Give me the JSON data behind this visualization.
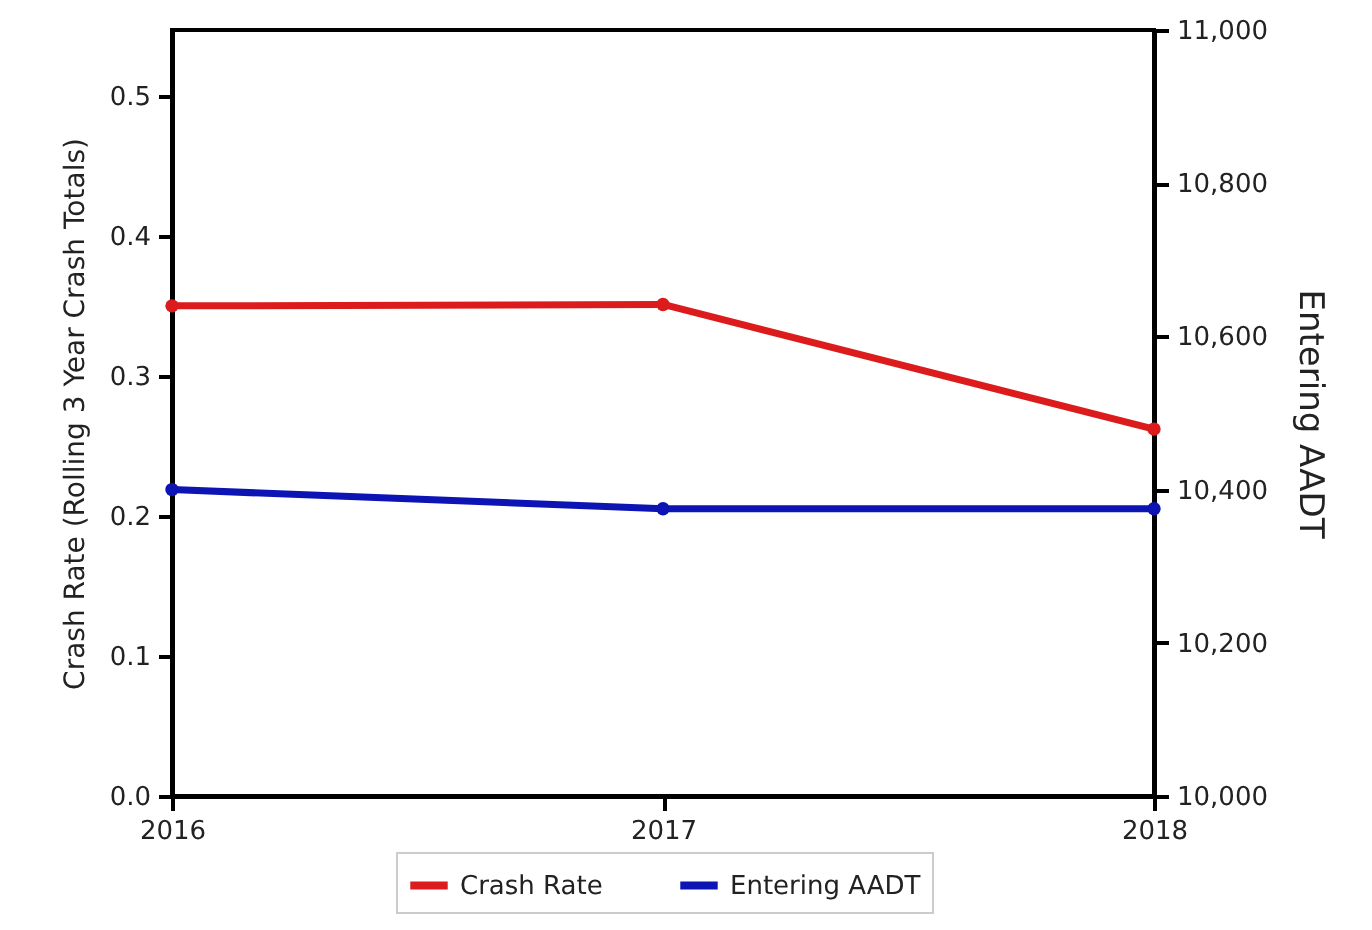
{
  "chart_data": {
    "type": "line",
    "xlabel": null,
    "ylabel": "Crash Rate (Rolling 3 Year Crash Totals)",
    "y2label": "Entering AADT",
    "x": [
      2016,
      2017,
      2018
    ],
    "xlim": [
      2016,
      2018
    ],
    "xticks": [
      2016,
      2017,
      2018
    ],
    "ylim": [
      0,
      0.547
    ],
    "yticks": [
      {
        "value": 0,
        "label": "0.0"
      },
      {
        "value": 0.1,
        "label": "0.1"
      },
      {
        "value": 0.2,
        "label": "0.2"
      },
      {
        "value": 0.3,
        "label": "0.3"
      },
      {
        "value": 0.4,
        "label": "0.4"
      },
      {
        "value": 0.5,
        "label": "0.5"
      }
    ],
    "y2lim": [
      10000,
      11000
    ],
    "y2ticks": [
      {
        "value": 10000,
        "label": "10,000"
      },
      {
        "value": 10200,
        "label": "10,200"
      },
      {
        "value": 10400,
        "label": "10,400"
      },
      {
        "value": 10600,
        "label": "10,600"
      },
      {
        "value": 10800,
        "label": "10,800"
      },
      {
        "value": 11000,
        "label": "11,000"
      }
    ],
    "series": [
      {
        "name": "Crash Rate",
        "color": "#dc1c1c",
        "values": [
          0.35,
          0.351,
          0.262
        ]
      },
      {
        "name": "Entering AADT",
        "color": "#0c14b4",
        "axis": "y2",
        "values": [
          10400,
          10375,
          10375
        ]
      }
    ],
    "grid": false,
    "legend": "bottom",
    "marker": "circle",
    "line_style": "solid"
  }
}
